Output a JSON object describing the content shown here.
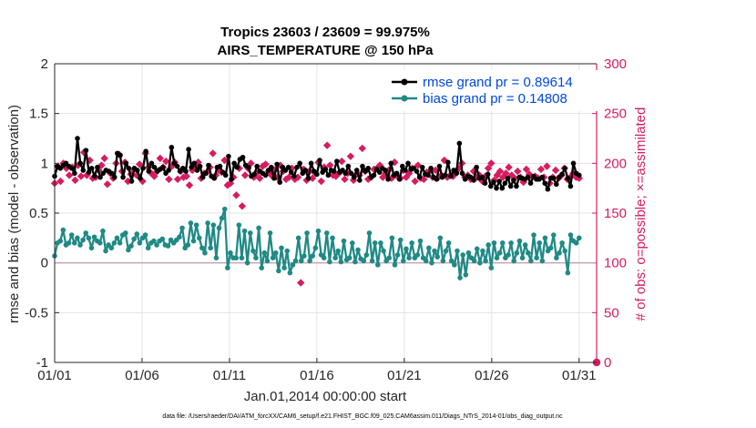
{
  "chart_data": {
    "type": "line",
    "title": "Tropics 23603 / 23609 = 99.975%",
    "subtitle": "AIRS_TEMPERATURE @ 150 hPa",
    "xlabel": "Jan.01,2014 00:00:00 start",
    "ylabel": "rmse and bias (model - observation)",
    "ylabel_right": "# of obs: o=possible; ×=assimilated",
    "footnote": "data file: /Users/raeder/DAI/ATM_forcXX/CAM6_setup/f.e21.FHIST_BGC.f09_025.CAM6assim.011/Diags_NTrS_2014-01/obs_diag_output.nc",
    "x_ticks": [
      "01/01",
      "01/06",
      "01/11",
      "01/16",
      "01/21",
      "01/26",
      "01/31"
    ],
    "x_tick_days": [
      1,
      6,
      11,
      16,
      21,
      26,
      31
    ],
    "xlim": [
      1,
      32
    ],
    "y_ticks": [
      "-1",
      "-0.5",
      "0",
      "0.5",
      "1",
      "1.5",
      "2"
    ],
    "ylim": [
      -1,
      2
    ],
    "y2_ticks": [
      "0",
      "50",
      "100",
      "150",
      "200",
      "250",
      "300"
    ],
    "y2lim": [
      0,
      300
    ],
    "legend": [
      {
        "name": "rmse grand pr = 0.89614",
        "color": "#000000"
      },
      {
        "name": "bias grand pr = 0.14808",
        "color": "#1f8a85"
      }
    ],
    "series": [
      {
        "name": "rmse",
        "color": "#000000",
        "values": [
          0.87,
          0.97,
          0.95,
          0.98,
          1.0,
          0.97,
          0.95,
          0.9,
          1.25,
          1.0,
          0.93,
          1.13,
          0.91,
          0.95,
          0.87,
          0.96,
          0.86,
          0.9,
          0.93,
          0.92,
          0.9,
          0.86,
          1.1,
          1.08,
          0.86,
          1.0,
          0.95,
          0.82,
          0.95,
          0.93,
          0.85,
          0.95,
          1.12,
          0.92,
          1.0,
          0.96,
          0.92,
          0.94,
          0.96,
          0.9,
          0.93,
          1.16,
          1.0,
          0.97,
          0.92,
          0.95,
          0.92,
          1.14,
          0.96,
          1.0,
          0.93,
          0.97,
          0.86,
          0.9,
          0.98,
          0.87,
          0.85,
          0.96,
          0.97,
          0.91,
          0.88,
          1.07,
          0.84,
          1.0,
          0.96,
          1.04,
          1.06,
          0.98,
          0.96,
          0.87,
          0.89,
          0.97,
          0.92,
          0.9,
          0.88,
          0.93,
          0.96,
          0.85,
          0.99,
          0.81,
          0.96,
          0.93,
          0.96,
          0.91,
          0.87,
          0.96,
          1.0,
          0.9,
          0.93,
          0.85,
          1.0,
          0.92,
          0.89,
          1.03,
          0.91,
          0.94,
          0.88,
          0.93,
          0.92,
          1.02,
          0.91,
          0.93,
          0.9,
          0.97,
          0.9,
          0.86,
          0.93,
          0.83,
          0.97,
          0.92,
          0.95,
          0.86,
          0.88,
          0.94,
          0.91,
          0.95,
          0.93,
          0.84,
          1.0,
          0.88,
          0.9,
          0.84,
          0.97,
          0.93,
          1.0,
          0.94,
          0.95,
          0.92,
          0.86,
          0.96,
          0.89,
          0.88,
          0.95,
          0.86,
          0.84,
          0.97,
          0.86,
          0.88,
          1.01,
          0.87,
          0.93,
          0.9,
          1.2,
          0.9,
          0.84,
          0.87,
          0.86,
          0.83,
          0.96,
          0.85,
          0.86,
          0.8,
          0.89,
          0.77,
          0.81,
          0.75,
          0.82,
          0.75,
          0.8,
          0.85,
          0.77,
          0.83,
          0.77,
          0.86,
          0.85,
          0.84,
          0.86,
          0.8,
          0.87,
          0.84,
          0.84,
          0.86,
          0.8,
          0.74,
          0.85,
          0.85,
          0.79,
          0.86,
          0.89,
          0.95,
          0.85,
          0.77,
          1.0,
          0.9,
          0.88
        ]
      },
      {
        "name": "bias",
        "color": "#1f8a85",
        "values": [
          0.07,
          0.2,
          0.22,
          0.33,
          0.18,
          0.2,
          0.28,
          0.2,
          0.25,
          0.18,
          0.23,
          0.3,
          0.25,
          0.15,
          0.26,
          0.22,
          0.2,
          0.32,
          0.12,
          0.18,
          0.15,
          0.2,
          0.25,
          0.2,
          0.28,
          0.3,
          0.13,
          0.17,
          0.24,
          0.29,
          0.2,
          0.25,
          0.28,
          0.15,
          0.2,
          0.22,
          0.18,
          0.22,
          0.24,
          0.18,
          0.17,
          0.23,
          0.2,
          0.23,
          0.26,
          0.35,
          0.15,
          0.18,
          0.4,
          0.22,
          0.38,
          0.25,
          0.15,
          0.1,
          0.4,
          0.15,
          0.38,
          0.05,
          0.35,
          0.45,
          0.54,
          -0.05,
          0.1,
          0.05,
          0.05,
          0.38,
          0.05,
          0.32,
          0.0,
          0.3,
          0.12,
          0.05,
          0.35,
          -0.05,
          0.1,
          0.02,
          0.3,
          0.05,
          0.1,
          -0.08,
          0.15,
          -0.05,
          0.12,
          -0.1,
          -0.02,
          0.02,
          0.25,
          0.02,
          0.07,
          0.3,
          0.02,
          0.07,
          0.15,
          0.32,
          0.08,
          0.05,
          0.3,
          0.01,
          0.25,
          0.05,
          0.12,
          0.01,
          0.22,
          0.03,
          0.05,
          0.2,
          0.01,
          0.13,
          0.04,
          0.02,
          0.08,
          0.3,
          0.02,
          0.2,
          -0.02,
          0.2,
          0.12,
          0.02,
          0.05,
          0.25,
          -0.02,
          0.08,
          0.23,
          0.02,
          0.14,
          0.05,
          0.2,
          0.05,
          0.08,
          0.22,
          0.05,
          0.02,
          0.15,
          0.0,
          0.12,
          0.06,
          0.25,
          0.02,
          0.12,
          0.2,
          0.02,
          -0.02,
          0.12,
          -0.15,
          0.08,
          -0.12,
          0.1,
          0.05,
          0.02,
          0.14,
          0.0,
          0.12,
          0.02,
          0.18,
          -0.05,
          0.2,
          0.05,
          0.1,
          0.2,
          0.05,
          0.08,
          0.2,
          0.02,
          0.1,
          0.22,
          0.05,
          0.18,
          0.1,
          0.02,
          0.28,
          0.05,
          0.2,
          0.02,
          0.25,
          0.12,
          0.15,
          0.28,
          0.05,
          0.1,
          0.2,
          0.12,
          -0.1,
          0.28,
          0.22,
          0.2,
          0.25
        ]
      },
      {
        "name": "# of obs assimilated",
        "axis": "right",
        "color": "#d81b60",
        "values": [
          180,
          197,
          182,
          200,
          195,
          188,
          196,
          183,
          198,
          187,
          211,
          188,
          203,
          185,
          186,
          193,
          198,
          205,
          179,
          190,
          185,
          200,
          209,
          192,
          201,
          182,
          189,
          194,
          188,
          199,
          182,
          210,
          196,
          190,
          187,
          192,
          205,
          196,
          202,
          184,
          197,
          201,
          184,
          192,
          186,
          187,
          178,
          193,
          197,
          201,
          185,
          190,
          191,
          196,
          210,
          188,
          193,
          191,
          203,
          178,
          180,
          186,
          168,
          195,
          157,
          188,
          195,
          200,
          186,
          190,
          185,
          197,
          199,
          192,
          188,
          193,
          186,
          198,
          192,
          184,
          186,
          195,
          184,
          186,
          80,
          194,
          183,
          192,
          185,
          190,
          201,
          182,
          196,
          218,
          198,
          188,
          187,
          190,
          202,
          184,
          190,
          207,
          183,
          189,
          188,
          215,
          192,
          184,
          186,
          194,
          195,
          198,
          186,
          190,
          193,
          185,
          201,
          187,
          185,
          193,
          186,
          190,
          195,
          182,
          198,
          185,
          184,
          191,
          192,
          186,
          193,
          186,
          188,
          203,
          186,
          188,
          187,
          192,
          195,
          200,
          186,
          188,
          184,
          192,
          186,
          188,
          182,
          187,
          195,
          200,
          183,
          188,
          192,
          186,
          190,
          196,
          188,
          185,
          192,
          186,
          181,
          194,
          189,
          186,
          187,
          185,
          194,
          186,
          197,
          180,
          186,
          193,
          185,
          188,
          195,
          184,
          186,
          190,
          186,
          185
        ]
      }
    ]
  }
}
